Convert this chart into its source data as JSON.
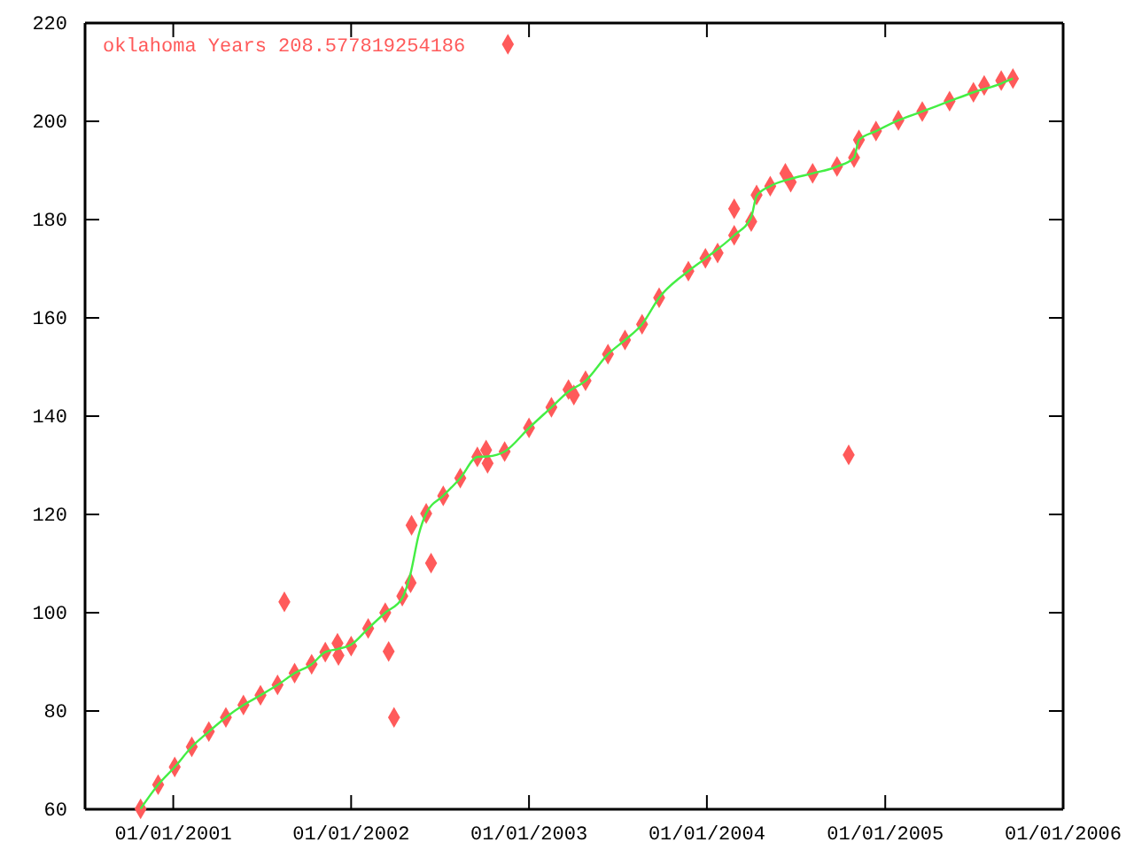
{
  "chart_data": {
    "type": "scatter",
    "legend": "top left",
    "grid": false,
    "xlim": [
      "2000-07-04",
      "2006-01-01"
    ],
    "xticks": [
      {
        "value": "2001-01-01",
        "label": "01/01/2001"
      },
      {
        "value": "2002-01-01",
        "label": "01/01/2002"
      },
      {
        "value": "2003-01-01",
        "label": "01/01/2003"
      },
      {
        "value": "2004-01-01",
        "label": "01/01/2004"
      },
      {
        "value": "2005-01-01",
        "label": "01/01/2005"
      },
      {
        "value": "2006-01-01",
        "label": "01/01/2006"
      }
    ],
    "ylim": [
      60,
      220
    ],
    "yticks": [
      60,
      80,
      100,
      120,
      140,
      160,
      180,
      200,
      220
    ],
    "series": [
      {
        "name": "oklahoma Years 208.577819254186",
        "marker": "diamond",
        "color": "#ff5a5a",
        "x": [
          "2000-10-26",
          "2000-12-01",
          "2001-01-04",
          "2001-02-08",
          "2001-03-15",
          "2001-04-19",
          "2001-05-25",
          "2001-06-29",
          "2001-08-03",
          "2001-09-07",
          "2001-10-12",
          "2001-11-09",
          "2001-12-04",
          "2001-12-06",
          "2002-01-01",
          "2002-02-05",
          "2002-03-12",
          "2002-04-16",
          "2002-05-03",
          "2002-05-05",
          "2002-06-04",
          "2002-07-09",
          "2002-08-13",
          "2002-09-17",
          "2002-10-05",
          "2002-10-08",
          "2002-11-12",
          "2003-01-01",
          "2003-02-16",
          "2003-03-23",
          "2003-04-03",
          "2003-04-27",
          "2003-06-12",
          "2003-07-17",
          "2003-08-21",
          "2003-09-25",
          "2003-11-24",
          "2003-12-29",
          "2004-01-23",
          "2004-02-26",
          "2004-04-01",
          "2004-04-12",
          "2004-05-10",
          "2004-06-10",
          "2004-06-21",
          "2004-08-05",
          "2004-09-24",
          "2004-10-29",
          "2004-11-08",
          "2004-12-13",
          "2005-01-28",
          "2005-03-18",
          "2005-05-13",
          "2005-07-01",
          "2005-07-23",
          "2005-08-27",
          "2005-09-20",
          "2001-08-17",
          "2002-03-19",
          "2002-03-30",
          "2002-06-14",
          "2004-02-26",
          "2004-10-18"
        ],
        "values": [
          60.1,
          65,
          68.6,
          72.7,
          75.8,
          78.7,
          81.2,
          83.2,
          85.3,
          87.7,
          89.5,
          92,
          93.8,
          91.3,
          93.2,
          96.8,
          100,
          103.4,
          106.1,
          117.8,
          120.2,
          123.8,
          127.4,
          131.7,
          133.1,
          130.4,
          132.8,
          137.6,
          141.8,
          145.4,
          144.3,
          147.2,
          152.6,
          155.5,
          158.7,
          164.1,
          169.5,
          172.1,
          173.2,
          176.8,
          179.6,
          185,
          186.8,
          189.4,
          187.6,
          189.4,
          190.8,
          192.6,
          196.2,
          198,
          200.2,
          202,
          204.1,
          205.9,
          207.3,
          208.3,
          208.7,
          102.2,
          92.1,
          78.7,
          110.1,
          182.2,
          132.1
        ]
      },
      {
        "type": "line",
        "marker": "none",
        "color": "#44ee44",
        "x": [
          "2000-10-26",
          "2000-12-01",
          "2001-01-04",
          "2001-02-08",
          "2001-03-15",
          "2001-04-19",
          "2001-05-25",
          "2001-06-29",
          "2001-08-03",
          "2001-09-07",
          "2001-10-12",
          "2001-11-09",
          "2001-12-04",
          "2002-01-01",
          "2002-02-05",
          "2002-03-12",
          "2002-04-16",
          "2002-05-03",
          "2002-05-20",
          "2002-06-04",
          "2002-07-09",
          "2002-08-13",
          "2002-09-17",
          "2002-10-08",
          "2002-11-12",
          "2003-01-01",
          "2003-02-16",
          "2003-03-23",
          "2003-04-27",
          "2003-06-12",
          "2003-07-17",
          "2003-08-21",
          "2003-09-25",
          "2003-11-24",
          "2003-12-29",
          "2004-02-26",
          "2004-04-01",
          "2004-04-12",
          "2004-05-10",
          "2004-06-21",
          "2004-08-05",
          "2004-09-24",
          "2004-10-29",
          "2004-11-08",
          "2004-12-13",
          "2005-01-28",
          "2005-03-18",
          "2005-05-13",
          "2005-07-01",
          "2005-08-27",
          "2005-09-20"
        ],
        "values": [
          60.1,
          65,
          68.6,
          72.7,
          75.8,
          78.7,
          81.2,
          83.2,
          85.3,
          87.7,
          89.5,
          92,
          92.6,
          93.5,
          96.8,
          100,
          103,
          108,
          116,
          120.2,
          123.8,
          127.4,
          131.7,
          131.8,
          132.8,
          137.6,
          141.8,
          145,
          147.2,
          152.6,
          155.5,
          158.7,
          164.1,
          169.5,
          172.1,
          176.8,
          180.5,
          184.8,
          186.8,
          188.3,
          189.4,
          190.8,
          192.6,
          196.2,
          198,
          200.2,
          202,
          204.1,
          205.9,
          207.7,
          208.7
        ]
      }
    ]
  }
}
